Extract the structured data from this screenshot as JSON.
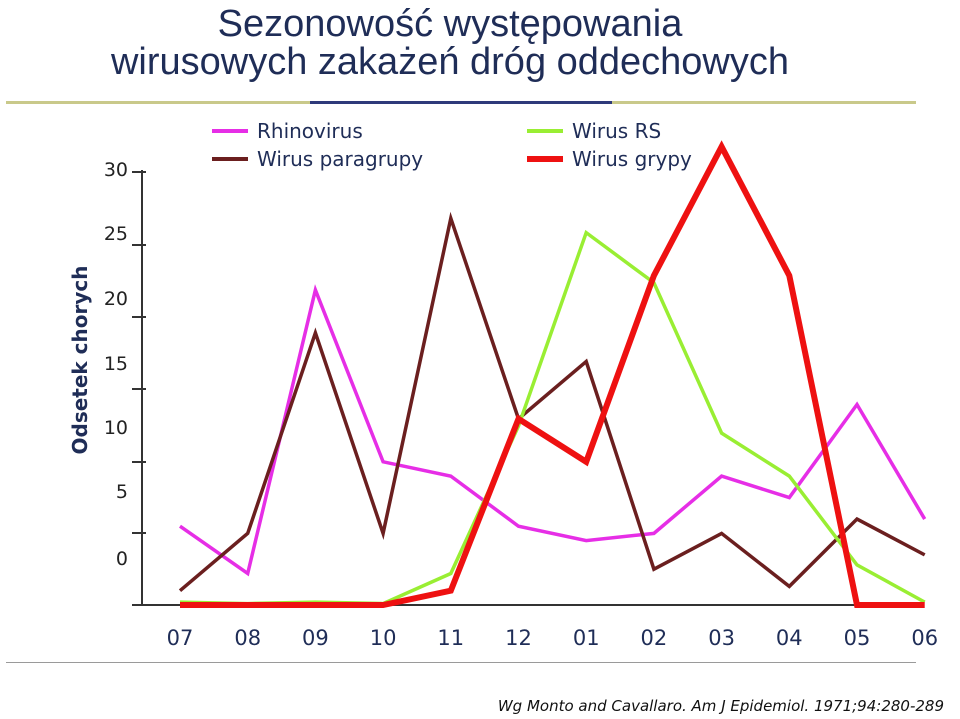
{
  "title_line1": "Sezonowość występowania",
  "title_line2": "wirusowych zakażeń dróg oddechowych",
  "source": "Wg Monto and Cavallaro. Am J Epidemiol. 1971;94:280-289",
  "colors": {
    "title": "#1f2d57",
    "rule_left": "#c9c98a",
    "rule_mid": "#2e3a7a",
    "rule_right": "#c9c98a",
    "axis": "#333333"
  },
  "chart_data": {
    "type": "line",
    "title": "",
    "ylabel": "Odsetek chorych",
    "xlabel": "",
    "categories": [
      "07",
      "08",
      "09",
      "10",
      "11",
      "12",
      "01",
      "02",
      "03",
      "04",
      "05",
      "06"
    ],
    "ylim": [
      0,
      30
    ],
    "y_ticks": [
      "0",
      "5",
      "10",
      "15",
      "20",
      "25",
      "30"
    ],
    "legend_position": "top",
    "series": [
      {
        "name": "Rhinovirus",
        "color": "#e62ee6",
        "values": [
          5.5,
          2.2,
          22,
          10,
          9,
          5.5,
          4.5,
          5,
          9,
          7.5,
          14,
          6
        ]
      },
      {
        "name": "Wirus paragrupy",
        "color": "#6b1f1f",
        "values": [
          1,
          5,
          19,
          5,
          27,
          13,
          17,
          2.5,
          5,
          1.3,
          6,
          3.5
        ]
      },
      {
        "name": "Wirus RS",
        "color": "#99ee33",
        "values": [
          0.2,
          0.1,
          0.2,
          0.1,
          2.2,
          12.5,
          26,
          22.5,
          12,
          9,
          2.8,
          0.2
        ]
      },
      {
        "name": "Wirus grypy",
        "color": "#ee1111",
        "values": [
          0,
          0,
          0,
          0,
          1,
          13,
          10,
          23,
          32,
          23,
          0,
          0
        ]
      }
    ]
  }
}
